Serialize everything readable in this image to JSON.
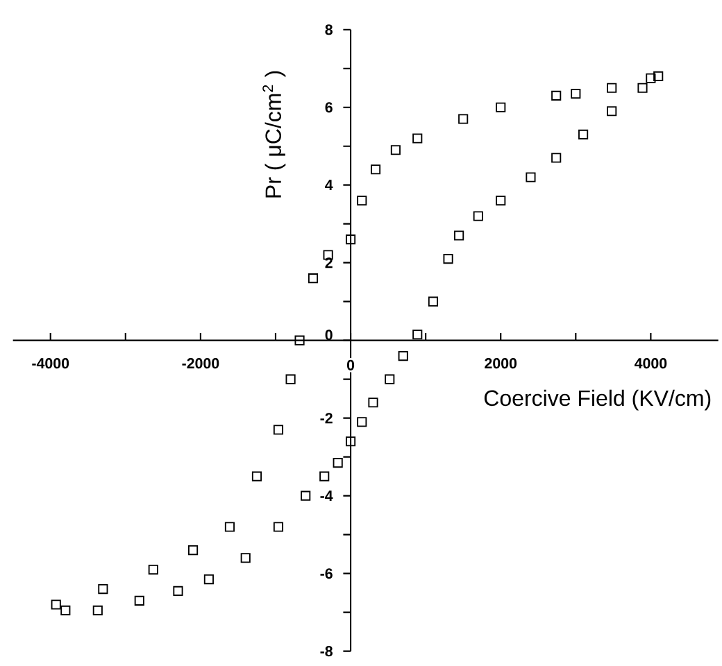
{
  "chart_data": {
    "type": "scatter",
    "xlabel": "Coercive Field (KV/cm)",
    "ylabel": "Pr ( μC/cm$^{2}$ )",
    "xlim": [
      -4500,
      4900
    ],
    "ylim": [
      -8,
      8
    ],
    "xticks": [
      -4000,
      {
        "value": -3000,
        "label": null
      },
      -2000,
      {
        "value": -1000,
        "label": null
      },
      0,
      {
        "value": 1000,
        "label": null
      },
      2000,
      {
        "value": 3000,
        "label": null
      },
      4000
    ],
    "yticks": [
      -8,
      {
        "value": -7,
        "label": null
      },
      -6,
      {
        "value": -5,
        "label": null
      },
      -4,
      {
        "value": -3,
        "label": null
      },
      -2,
      {
        "value": -1,
        "label": null
      },
      0,
      {
        "value": 1,
        "label": null
      },
      2,
      {
        "value": 3,
        "label": null
      },
      4,
      {
        "value": 5,
        "label": null
      },
      6,
      {
        "value": 7,
        "label": null
      },
      8
    ],
    "grid": false,
    "marker": "square",
    "series": [
      {
        "color": "#000000",
        "x": [
          0,
          150,
          300,
          520,
          700,
          890,
          1100,
          1300,
          1444,
          1700,
          2000,
          2400,
          2740,
          3100,
          3480,
          3890,
          4100,
          4000,
          3480,
          3000,
          2740,
          2000,
          1500,
          890,
          600,
          333,
          150,
          0,
          -300,
          -500,
          -680,
          -800,
          -963,
          -1250,
          -1611,
          -2100,
          -2630,
          -3300,
          -3926,
          -3800,
          -3370,
          -2815,
          -2300,
          -1889,
          -1400,
          -963,
          -600,
          -350,
          -170
        ],
        "values": [
          -2.6,
          -2.1,
          -1.6,
          -1.0,
          -0.4,
          0.15,
          1.0,
          2.1,
          2.7,
          3.2,
          3.6,
          4.2,
          4.7,
          5.3,
          5.9,
          6.5,
          6.8,
          6.75,
          6.5,
          6.35,
          6.3,
          6.0,
          5.7,
          5.2,
          4.9,
          4.4,
          3.6,
          2.6,
          2.2,
          1.6,
          0,
          -1.0,
          -2.3,
          -3.5,
          -4.8,
          -5.4,
          -5.9,
          -6.4,
          -6.8,
          -6.95,
          -6.95,
          -6.7,
          -6.45,
          -6.15,
          -5.6,
          -4.8,
          -4.0,
          -3.5,
          -3.15
        ]
      }
    ]
  }
}
